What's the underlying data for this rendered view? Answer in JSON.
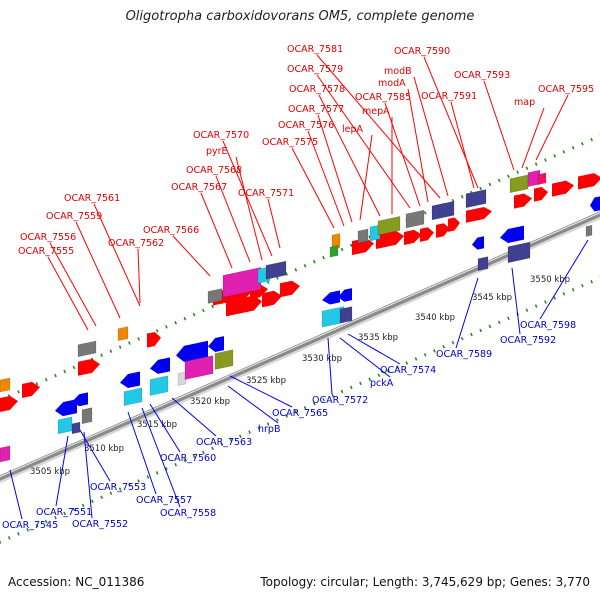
{
  "title": "Oligotropha carboxidovorans OM5, complete genome",
  "footer": {
    "accession": "Accession: NC_011386",
    "summary": "Topology: circular; Length: 3,745,629 bp; Genes: 3,770"
  },
  "colors": {
    "backbone": "#8a8a8a",
    "dots": "#2e8b22",
    "forward_gene": "#ff0000",
    "reverse_gene": "#0000ee",
    "forward_label": "#dd0000",
    "reverse_label": "#0000cc"
  },
  "kbp_ticks": [
    "3505 kbp",
    "3510 kbp",
    "3515 kbp",
    "3520 kbp",
    "3525 kbp",
    "3530 kbp",
    "3535 kbp",
    "3540 kbp",
    "3545 kbp",
    "3550 kbp"
  ],
  "forward_labels": [
    "OCAR_7555",
    "OCAR_7556",
    "OCAR_7559",
    "OCAR_7561",
    "OCAR_7562",
    "OCAR_7566",
    "OCAR_7567",
    "OCAR_7568",
    "pyrE",
    "OCAR_7570",
    "OCAR_7571",
    "OCAR_7575",
    "OCAR_7576",
    "OCAR_7577",
    "lepA",
    "OCAR_7578",
    "mepA",
    "OCAR_7579",
    "OCAR_7585",
    "modA",
    "OCAR_7581",
    "modB",
    "OCAR_7591",
    "OCAR_7590",
    "OCAR_7593",
    "map",
    "OCAR_7595"
  ],
  "reverse_labels": [
    "OCAR_7545",
    "OCAR_7551",
    "OCAR_7552",
    "OCAR_7553",
    "OCAR_7557",
    "OCAR_7558",
    "OCAR_7560",
    "OCAR_7563",
    "hrpB",
    "OCAR_7565",
    "OCAR_7572",
    "pckA",
    "OCAR_7574",
    "OCAR_7589",
    "OCAR_7592",
    "OCAR_7598"
  ]
}
